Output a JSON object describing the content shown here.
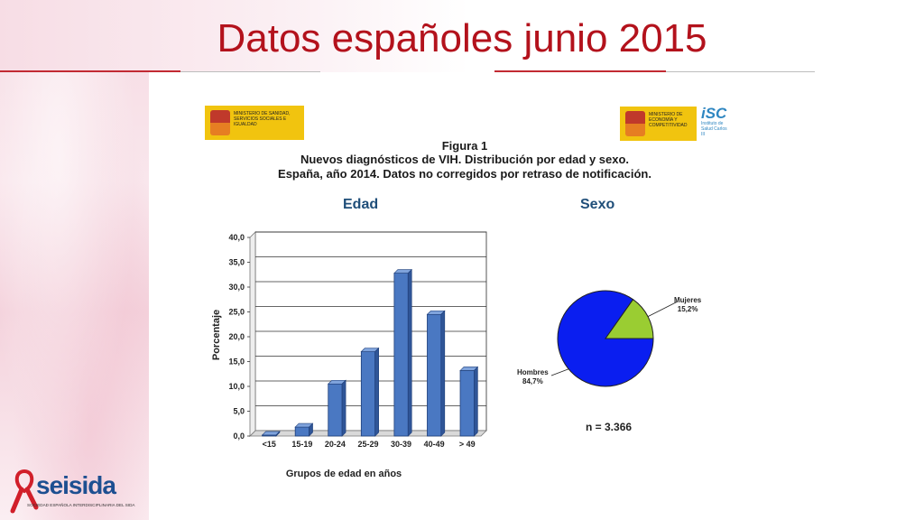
{
  "slide": {
    "title": "Datos españoles junio 2015"
  },
  "logos": {
    "ministry_left": "MINISTERIO DE SANIDAD, SERVICIOS SOCIALES E IGUALDAD",
    "ministry_right": "MINISTERIO DE ECONOMÍA Y COMPETITIVIDAD",
    "isc_mark": "iSC",
    "isc_name": "Instituto de Salud Carlos III",
    "seisida_word": "seisida",
    "seisida_sub": "SOCIEDAD ESPAÑOLA INTERDISCIPLINARIA DEL SIDA"
  },
  "figure": {
    "label": "Figura 1",
    "line2": "Nuevos diagnósticos de VIH. Distribución por edad y sexo.",
    "line3": "España, año 2014. Datos no corregidos por retraso de notificación."
  },
  "chart_data": [
    {
      "type": "bar",
      "title": "Edad",
      "xlabel": "Grupos de edad en años",
      "ylabel": "Porcentaje",
      "ylim": [
        0,
        40
      ],
      "yticks": [
        "0,0",
        "5,0",
        "10,0",
        "15,0",
        "20,0",
        "25,0",
        "30,0",
        "35,0",
        "40,0"
      ],
      "categories": [
        "<15",
        "15-19",
        "20-24",
        "25-29",
        "30-39",
        "40-49",
        "> 49"
      ],
      "values": [
        0.2,
        1.8,
        10.5,
        17.0,
        32.8,
        24.5,
        13.2
      ],
      "grid": true,
      "bar_color": "#4a78c2"
    },
    {
      "type": "pie",
      "title": "Sexo",
      "slices": [
        {
          "label": "Hombres",
          "value": 84.7,
          "value_label": "84,7%",
          "color": "#0a1ef0"
        },
        {
          "label": "Mujeres",
          "value": 15.2,
          "value_label": "15,2%",
          "color": "#9acd32"
        }
      ],
      "note": "n = 3.366"
    }
  ]
}
